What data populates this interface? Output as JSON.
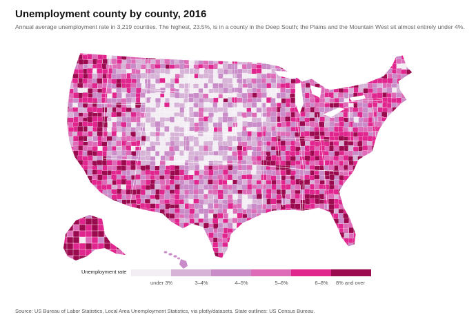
{
  "title": "Unemployment county by county, 2016",
  "subtitle": "Annual average unemployment rate in 3,219 counties. The highest, 23.5%, is in a county in the Deep South; the Plains and the Mountain West sit almost entirely under 4%.",
  "legend": {
    "title": "Unemployment rate",
    "bins": [
      {
        "label": "under 3%",
        "color": "#f3eef4"
      },
      {
        "label": "3–4%",
        "color": "#d6b3d7"
      },
      {
        "label": "4–5%",
        "color": "#c98cc8"
      },
      {
        "label": "5–6%",
        "color": "#de6bb8"
      },
      {
        "label": "6–8%",
        "color": "#e0268e"
      },
      {
        "label": "8% and over",
        "color": "#9b0a4f"
      }
    ]
  },
  "source": "Source: US Bureau of Labor Statistics, Local Area Unemployment Statistics, via plotly/datasets. State outlines: US Census Bureau."
}
